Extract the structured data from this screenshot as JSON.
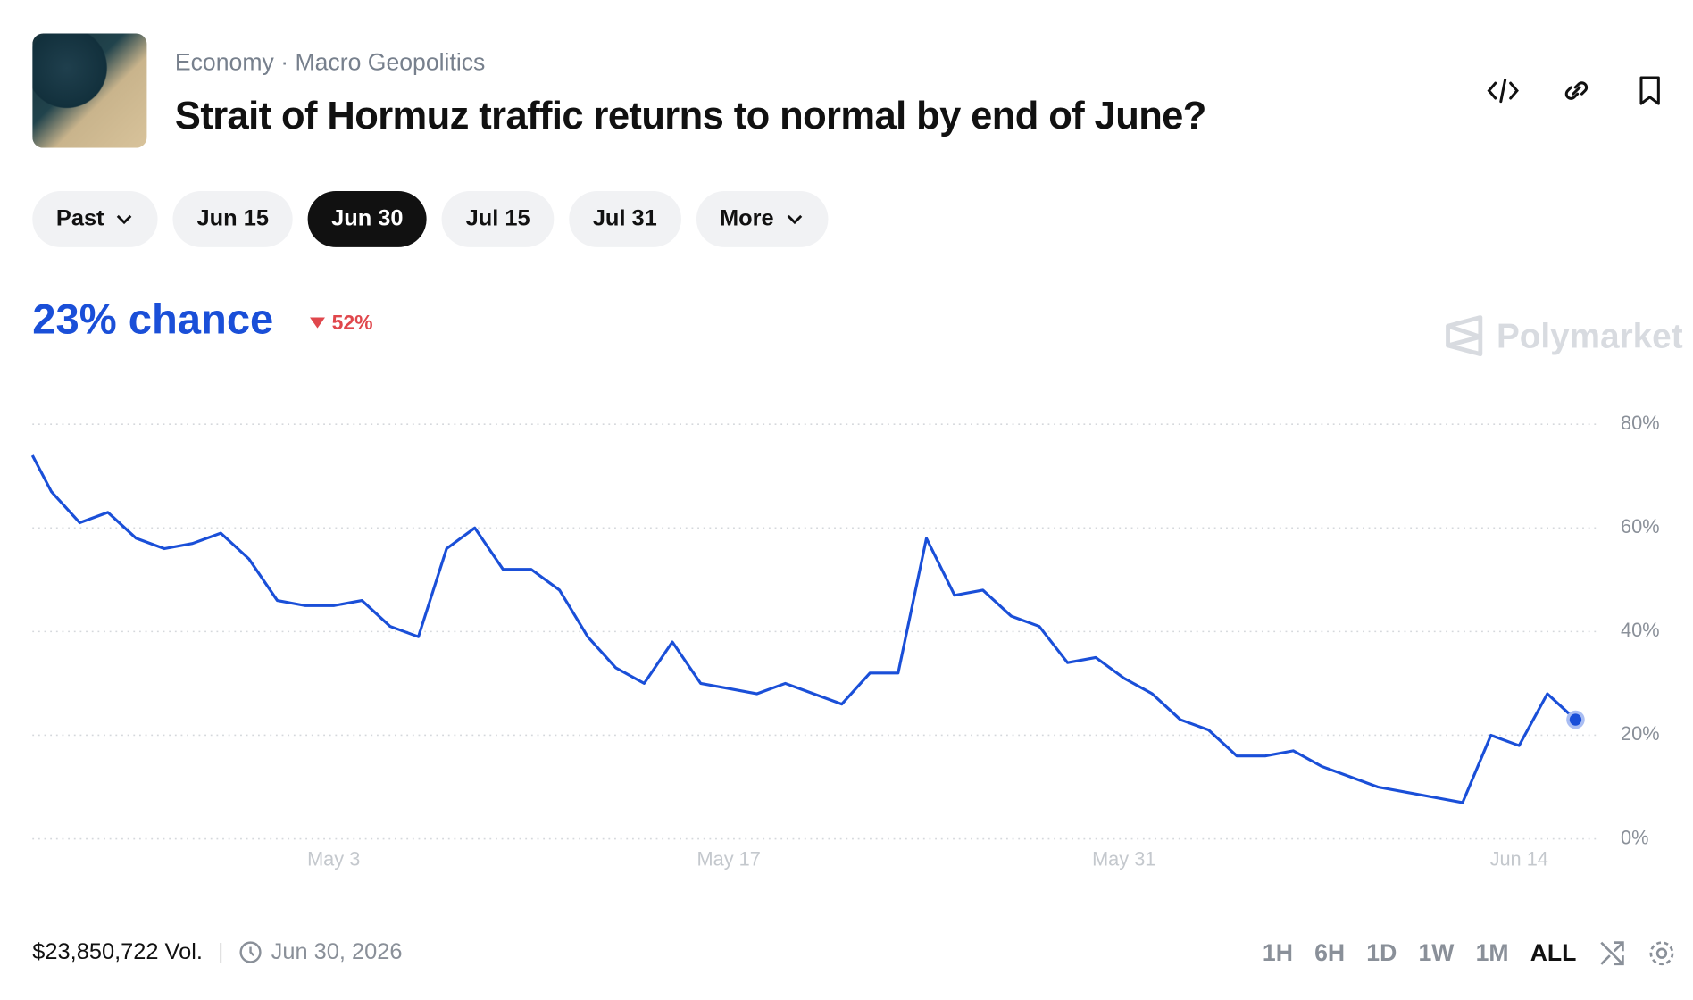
{
  "header": {
    "breadcrumbs": [
      "Economy",
      "Macro Geopolitics"
    ],
    "title": "Strait of Hormuz traffic returns to normal by end of June?"
  },
  "tabs": [
    "Past",
    "Jun 15",
    "Jun 30",
    "Jul 15",
    "Jul 31",
    "More"
  ],
  "chance": "23% chance",
  "change": "52%",
  "brand": "Polymarket",
  "chart_data": {
    "type": "line",
    "x": [
      "Apr 22",
      "Apr 23",
      "Apr 24",
      "Apr 25",
      "Apr 26",
      "Apr 27",
      "Apr 28",
      "Apr 29",
      "Apr 30",
      "May 1",
      "May 2",
      "May 3",
      "May 4",
      "May 5",
      "May 6",
      "May 7",
      "May 8",
      "May 9",
      "May 10",
      "May 11",
      "May 12",
      "May 13",
      "May 14",
      "May 15",
      "May 16",
      "May 17",
      "May 18",
      "May 19",
      "May 20",
      "May 21",
      "May 22",
      "May 23",
      "May 24",
      "May 25",
      "May 26",
      "May 27",
      "May 28",
      "May 29",
      "May 30",
      "May 31",
      "Jun 1",
      "Jun 2",
      "Jun 3",
      "Jun 4",
      "Jun 5",
      "Jun 6",
      "Jun 7",
      "Jun 8",
      "Jun 9",
      "Jun 10",
      "Jun 11",
      "Jun 12",
      "Jun 13",
      "Jun 14",
      "Jun 15",
      "Jun 16"
    ],
    "series": [
      {
        "name": "Yes",
        "color": "#1a4fd8",
        "values": [
          74,
          67,
          61,
          63,
          58,
          56,
          57,
          59,
          54,
          46,
          45,
          45,
          46,
          41,
          39,
          56,
          60,
          52,
          52,
          48,
          39,
          33,
          30,
          38,
          30,
          29,
          28,
          30,
          28,
          26,
          32,
          32,
          58,
          47,
          48,
          43,
          41,
          34,
          35,
          31,
          28,
          23,
          21,
          16,
          16,
          17,
          14,
          12,
          10,
          9,
          8,
          7,
          20,
          18,
          28,
          23
        ]
      }
    ],
    "ylim": [
      0,
      80
    ],
    "yticks": [
      {
        "value": 0,
        "label": "0%"
      },
      {
        "value": 20,
        "label": "20%"
      },
      {
        "value": 40,
        "label": "40%"
      },
      {
        "value": 60,
        "label": "60%"
      },
      {
        "value": 80,
        "label": "80%"
      }
    ],
    "xticks": [
      "May 3",
      "May 17",
      "May 31",
      "Jun 14"
    ],
    "grid": true
  },
  "footer": {
    "volume": "$23,850,722 Vol.",
    "end_date": "Jun 30, 2026",
    "ranges": [
      "1H",
      "6H",
      "1D",
      "1W",
      "1M",
      "ALL"
    ],
    "active_range": "ALL"
  }
}
